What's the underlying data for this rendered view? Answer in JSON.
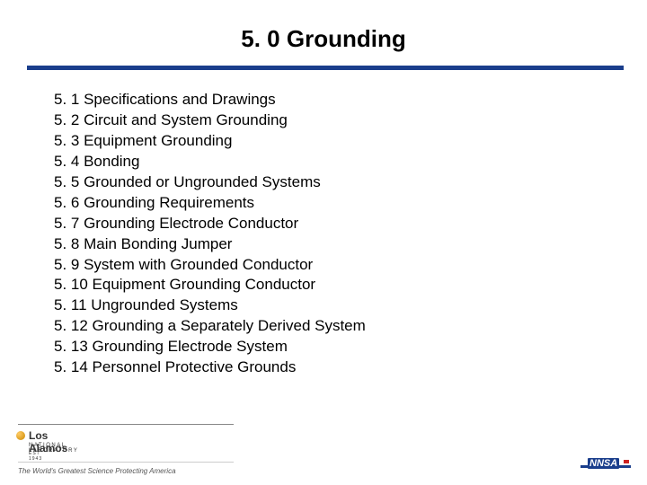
{
  "slide": {
    "title": "5. 0 Grounding",
    "title_fontsize": 26,
    "title_color": "#000000",
    "divider_color": "#1a3e8c",
    "divider_height": 5,
    "background_color": "#ffffff",
    "items": [
      "5. 1 Specifications and Drawings",
      "5. 2 Circuit and System Grounding",
      "5. 3 Equipment Grounding",
      "5. 4 Bonding",
      "5. 5 Grounded or Ungrounded Systems",
      "5. 6 Grounding Requirements",
      "5. 7 Grounding Electrode Conductor",
      "5. 8 Main Bonding Jumper",
      "5. 9 System with Grounded Conductor",
      "5. 10 Equipment Grounding Conductor",
      "5. 11 Ungrounded Systems",
      "5. 12 Grounding a Separately Derived System",
      "5. 13 Grounding Electrode System",
      "5. 14 Personnel Protective Grounds"
    ],
    "item_fontsize": 17,
    "item_color": "#000000",
    "item_lineheight": 1.35
  },
  "footer": {
    "lanl_name": "Los Alamos",
    "lanl_subtitle": "NATIONAL LABORATORY",
    "lanl_est": "EST 1943",
    "tagline": "The World's Greatest Science Protecting America",
    "nnsa_label": "NNSA",
    "divider_color": "#888888",
    "tagline_color": "#555555",
    "nnsa_bg": "#1a3e8c",
    "nnsa_accent": "#cc2222"
  }
}
